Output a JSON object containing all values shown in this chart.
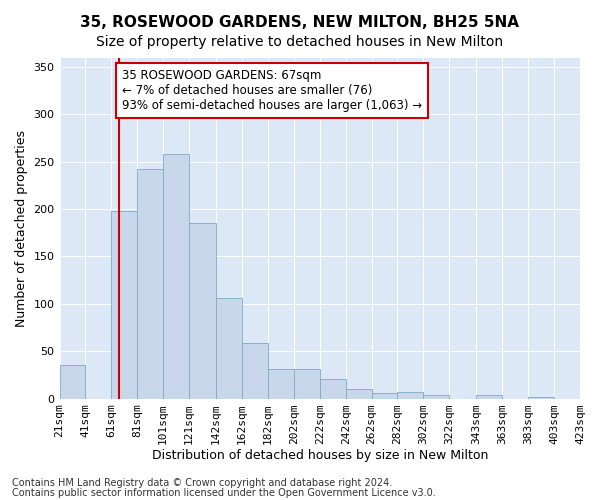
{
  "title": "35, ROSEWOOD GARDENS, NEW MILTON, BH25 5NA",
  "subtitle": "Size of property relative to detached houses in New Milton",
  "xlabel": "Distribution of detached houses by size in New Milton",
  "ylabel": "Number of detached properties",
  "footnote1": "Contains HM Land Registry data © Crown copyright and database right 2024.",
  "footnote2": "Contains public sector information licensed under the Open Government Licence v3.0.",
  "annotation_line1": "35 ROSEWOOD GARDENS: 67sqm",
  "annotation_line2": "← 7% of detached houses are smaller (76)",
  "annotation_line3": "93% of semi-detached houses are larger (1,063) →",
  "property_size": 67,
  "bin_edges": [
    21,
    41,
    61,
    81,
    101,
    121,
    142,
    162,
    182,
    202,
    222,
    242,
    262,
    282,
    302,
    322,
    343,
    363,
    383,
    403,
    423
  ],
  "bar_heights": [
    35,
    0,
    198,
    242,
    258,
    185,
    106,
    59,
    31,
    31,
    21,
    10,
    6,
    7,
    4,
    0,
    4,
    0,
    2,
    0,
    2
  ],
  "bar_color": "#c8d8ea",
  "bar_edge_color": "#7aaac8",
  "vline_color": "#cc0000",
  "vline_x": 67,
  "ylim": [
    0,
    360
  ],
  "yticks": [
    0,
    50,
    100,
    150,
    200,
    250,
    300,
    350
  ],
  "plot_bg_color": "#dce8f5",
  "title_fontsize": 11,
  "subtitle_fontsize": 10,
  "xlabel_fontsize": 9,
  "ylabel_fontsize": 9,
  "tick_fontsize": 8,
  "annotation_fontsize": 8.5,
  "footnote_fontsize": 7
}
